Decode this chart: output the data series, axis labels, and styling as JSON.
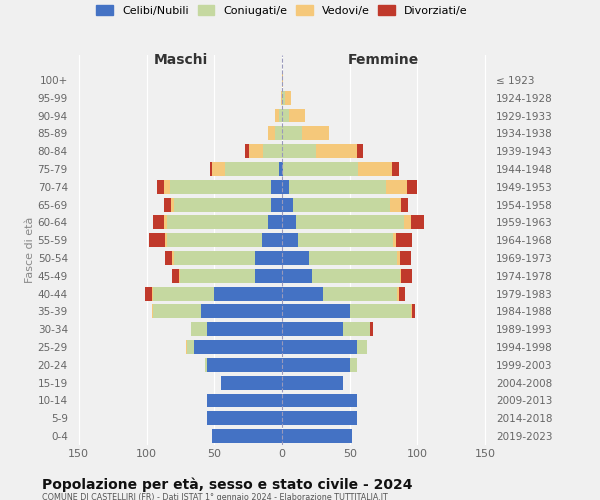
{
  "age_groups": [
    "0-4",
    "5-9",
    "10-14",
    "15-19",
    "20-24",
    "25-29",
    "30-34",
    "35-39",
    "40-44",
    "45-49",
    "50-54",
    "55-59",
    "60-64",
    "65-69",
    "70-74",
    "75-79",
    "80-84",
    "85-89",
    "90-94",
    "95-99",
    "100+"
  ],
  "birth_years": [
    "2019-2023",
    "2014-2018",
    "2009-2013",
    "2004-2008",
    "1999-2003",
    "1994-1998",
    "1989-1993",
    "1984-1988",
    "1979-1983",
    "1974-1978",
    "1969-1973",
    "1964-1968",
    "1959-1963",
    "1954-1958",
    "1949-1953",
    "1944-1948",
    "1939-1943",
    "1934-1938",
    "1929-1933",
    "1924-1928",
    "≤ 1923"
  ],
  "maschi_celibi": [
    52,
    55,
    55,
    45,
    55,
    65,
    55,
    60,
    50,
    20,
    20,
    15,
    10,
    8,
    8,
    2,
    0,
    0,
    0,
    0,
    0
  ],
  "maschi_coniugati": [
    0,
    0,
    0,
    0,
    2,
    5,
    12,
    35,
    45,
    55,
    60,
    70,
    75,
    72,
    75,
    40,
    14,
    5,
    2,
    0,
    0
  ],
  "maschi_vedovi": [
    0,
    0,
    0,
    0,
    0,
    1,
    0,
    1,
    1,
    1,
    1,
    1,
    2,
    2,
    4,
    10,
    10,
    5,
    3,
    1,
    0
  ],
  "maschi_divorziati": [
    0,
    0,
    0,
    0,
    0,
    0,
    0,
    0,
    5,
    5,
    5,
    12,
    8,
    5,
    5,
    1,
    3,
    0,
    0,
    0,
    0
  ],
  "femmine_nubili": [
    52,
    55,
    55,
    45,
    50,
    55,
    45,
    50,
    30,
    22,
    20,
    12,
    10,
    8,
    5,
    1,
    0,
    0,
    0,
    0,
    0
  ],
  "femmine_coniugate": [
    0,
    0,
    0,
    0,
    5,
    8,
    20,
    45,
    55,
    65,
    65,
    70,
    80,
    72,
    72,
    55,
    25,
    15,
    5,
    2,
    0
  ],
  "femmine_vedove": [
    0,
    0,
    0,
    0,
    0,
    0,
    0,
    1,
    1,
    1,
    2,
    2,
    5,
    8,
    15,
    25,
    30,
    20,
    12,
    5,
    1
  ],
  "femmine_divorziate": [
    0,
    0,
    0,
    0,
    0,
    0,
    2,
    2,
    5,
    8,
    8,
    12,
    10,
    5,
    8,
    5,
    5,
    0,
    0,
    0,
    0
  ],
  "color_celibi": "#4472c4",
  "color_coniugati": "#c5d8a0",
  "color_vedovi": "#f5c87a",
  "color_divorziati": "#c0392b",
  "legend_labels": [
    "Celibi/Nubili",
    "Coniugati/e",
    "Vedovi/e",
    "Divorziati/e"
  ],
  "title": "Popolazione per età, sesso e stato civile - 2024",
  "subtitle": "COMUNE DI CASTELLIRI (FR) - Dati ISTAT 1° gennaio 2024 - Elaborazione TUTTITALIA.IT",
  "ylabel_left": "Fasce di età",
  "header_left": "Maschi",
  "header_right": "Femmine",
  "xlim": 155,
  "bg_color": "#f0f0f0"
}
